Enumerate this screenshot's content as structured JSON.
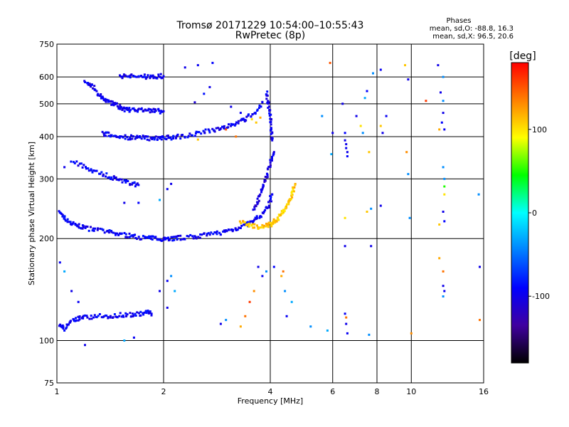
{
  "chart_data": {
    "type": "scatter",
    "title": "Tromsø 20171229 10:54:00–10:55:43",
    "subtitle": "RwPretec (8p)",
    "xlabel": "Frequency [MHz]",
    "ylabel": "Stationary phase Virtual Height [km]",
    "x_scale": "log",
    "y_scale": "log",
    "xlim": [
      1,
      16
    ],
    "ylim": [
      75,
      750
    ],
    "x_ticks": [
      1,
      2,
      4,
      6,
      8,
      10,
      16
    ],
    "x_tick_labels": [
      "1",
      "2",
      "4",
      "6",
      "8",
      "10",
      "16"
    ],
    "y_ticks": [
      75,
      100,
      200,
      300,
      400,
      500,
      600,
      750
    ],
    "y_tick_labels": [
      "75",
      "100",
      "200",
      "300",
      "400",
      "500",
      "600",
      "750"
    ],
    "grid": true,
    "phase_stats": {
      "heading": "Phases",
      "line_o": "mean, sd,O: -88.8, 16.3",
      "line_x": "mean, sd,X:  96.5, 20.6"
    },
    "colorbar": {
      "label": "[deg]",
      "range": [
        -180,
        180
      ],
      "ticks": [
        100,
        0,
        -100
      ],
      "tick_labels": [
        "100",
        "0",
        "-100"
      ],
      "colors": [
        "#ff0000",
        "#ff8000",
        "#ffff00",
        "#00ff00",
        "#00ffff",
        "#0080ff",
        "#0000ff",
        "#4000a0",
        "#000000"
      ]
    },
    "traces": [
      {
        "freq": [
          1.02,
          1.05,
          1.1,
          1.15,
          1.2,
          1.3,
          1.4,
          1.5,
          1.6,
          1.7,
          1.8,
          1.9,
          2.0,
          2.1,
          2.2,
          2.4,
          2.6,
          2.8,
          3.0,
          3.2,
          3.4,
          3.6,
          3.8,
          3.95,
          4.05
        ],
        "height": [
          238,
          230,
          222,
          218,
          215,
          212,
          209,
          206,
          204,
          202,
          201,
          200,
          200,
          200,
          201,
          202,
          204,
          207,
          210,
          214,
          219,
          226,
          236,
          250,
          270
        ],
        "phase": -95
      },
      {
        "freq": [
          3.3,
          3.5,
          3.7,
          3.9,
          4.0,
          4.1,
          4.2,
          4.3,
          4.4,
          4.5,
          4.6,
          4.7
        ],
        "height": [
          224,
          219,
          217,
          218,
          220,
          224,
          230,
          236,
          245,
          256,
          270,
          288
        ],
        "phase": 110
      },
      {
        "freq": [
          3.6,
          3.7,
          3.8,
          3.9,
          4.0,
          4.1
        ],
        "height": [
          245,
          262,
          282,
          305,
          330,
          360
        ],
        "phase": -105
      },
      {
        "freq": [
          1.35,
          1.4,
          1.5,
          1.6,
          1.7,
          1.8,
          1.9,
          2.0,
          2.1,
          2.2,
          2.4,
          2.6,
          2.8,
          3.0,
          3.2,
          3.4,
          3.6,
          3.8
        ],
        "height": [
          410,
          405,
          400,
          398,
          397,
          396,
          396,
          397,
          398,
          400,
          405,
          412,
          420,
          428,
          438,
          450,
          470,
          505
        ],
        "phase": -95
      },
      {
        "freq": [
          3.9,
          3.95,
          4.0,
          4.02,
          4.05
        ],
        "height": [
          540,
          500,
          460,
          420,
          390
        ],
        "phase": -100
      },
      {
        "freq": [
          1.1,
          1.2,
          1.3,
          1.4,
          1.5,
          1.6,
          1.7
        ],
        "height": [
          338,
          325,
          315,
          305,
          298,
          292,
          288
        ],
        "phase": -95
      },
      {
        "freq": [
          1.02,
          1.05,
          1.1,
          1.15,
          1.2,
          1.3,
          1.4,
          1.5,
          1.6,
          1.7,
          1.8,
          1.85
        ],
        "height": [
          112,
          108,
          114,
          116,
          117,
          118,
          118,
          119,
          119,
          120,
          121,
          120
        ],
        "phase": -95
      },
      {
        "freq": [
          1.2,
          1.25,
          1.3,
          1.35,
          1.4,
          1.45,
          1.5,
          1.55,
          1.6,
          1.7,
          1.8,
          1.9,
          2.0
        ],
        "height": [
          580,
          570,
          540,
          520,
          510,
          500,
          490,
          480,
          480,
          478,
          478,
          476,
          475
        ],
        "phase": -100
      },
      {
        "freq": [
          1.5,
          1.6,
          1.7,
          1.8,
          1.9,
          2.0
        ],
        "height": [
          605,
          603,
          602,
          601,
          602,
          603
        ],
        "phase": -95
      }
    ],
    "scatter": [
      {
        "freq": 2.3,
        "height": 640,
        "phase": -100
      },
      {
        "freq": 2.5,
        "height": 650,
        "phase": -95
      },
      {
        "freq": 2.75,
        "height": 660,
        "phase": -90
      },
      {
        "freq": 2.7,
        "height": 560,
        "phase": -100
      },
      {
        "freq": 2.6,
        "height": 535,
        "phase": -85
      },
      {
        "freq": 2.45,
        "height": 505,
        "phase": -110
      },
      {
        "freq": 3.1,
        "height": 490,
        "phase": -100
      },
      {
        "freq": 3.3,
        "height": 470,
        "phase": -95
      },
      {
        "freq": 3.55,
        "height": 450,
        "phase": 100
      },
      {
        "freq": 3.65,
        "height": 440,
        "phase": 110
      },
      {
        "freq": 3.75,
        "height": 455,
        "phase": 120
      },
      {
        "freq": 3.2,
        "height": 400,
        "phase": 140
      },
      {
        "freq": 3.0,
        "height": 420,
        "phase": 150
      },
      {
        "freq": 2.5,
        "height": 392,
        "phase": 110
      },
      {
        "freq": 2.1,
        "height": 290,
        "phase": -100
      },
      {
        "freq": 2.05,
        "height": 280,
        "phase": -95
      },
      {
        "freq": 1.7,
        "height": 255,
        "phase": -90
      },
      {
        "freq": 1.55,
        "height": 255,
        "phase": -100
      },
      {
        "freq": 1.95,
        "height": 260,
        "phase": -30
      },
      {
        "freq": 1.05,
        "height": 325,
        "phase": -100
      },
      {
        "freq": 1.02,
        "height": 170,
        "phase": -95
      },
      {
        "freq": 1.05,
        "height": 160,
        "phase": -30
      },
      {
        "freq": 1.1,
        "height": 140,
        "phase": -100
      },
      {
        "freq": 1.15,
        "height": 130,
        "phase": -95
      },
      {
        "freq": 1.2,
        "height": 97,
        "phase": -100
      },
      {
        "freq": 1.55,
        "height": 100,
        "phase": -30
      },
      {
        "freq": 1.65,
        "height": 102,
        "phase": -95
      },
      {
        "freq": 1.95,
        "height": 140,
        "phase": -100
      },
      {
        "freq": 2.05,
        "height": 150,
        "phase": -95
      },
      {
        "freq": 2.05,
        "height": 125,
        "phase": -100
      },
      {
        "freq": 2.1,
        "height": 155,
        "phase": -40
      },
      {
        "freq": 2.15,
        "height": 140,
        "phase": -30
      },
      {
        "freq": 2.9,
        "height": 112,
        "phase": -100
      },
      {
        "freq": 3.0,
        "height": 115,
        "phase": -40
      },
      {
        "freq": 3.4,
        "height": 118,
        "phase": 140
      },
      {
        "freq": 3.3,
        "height": 110,
        "phase": 120
      },
      {
        "freq": 3.5,
        "height": 130,
        "phase": 160
      },
      {
        "freq": 3.6,
        "height": 140,
        "phase": 130
      },
      {
        "freq": 3.7,
        "height": 165,
        "phase": -100
      },
      {
        "freq": 3.8,
        "height": 155,
        "phase": -95
      },
      {
        "freq": 3.9,
        "height": 160,
        "phase": -40
      },
      {
        "freq": 4.1,
        "height": 165,
        "phase": -90
      },
      {
        "freq": 4.3,
        "height": 155,
        "phase": 120
      },
      {
        "freq": 4.35,
        "height": 160,
        "phase": 140
      },
      {
        "freq": 4.4,
        "height": 140,
        "phase": -40
      },
      {
        "freq": 4.45,
        "height": 118,
        "phase": -95
      },
      {
        "freq": 4.6,
        "height": 130,
        "phase": -30
      },
      {
        "freq": 5.2,
        "height": 110,
        "phase": -40
      },
      {
        "freq": 5.8,
        "height": 107,
        "phase": -30
      },
      {
        "freq": 5.6,
        "height": 460,
        "phase": -40
      },
      {
        "freq": 5.9,
        "height": 660,
        "phase": 150
      },
      {
        "freq": 6.0,
        "height": 410,
        "phase": -100
      },
      {
        "freq": 5.95,
        "height": 355,
        "phase": -30
      },
      {
        "freq": 6.4,
        "height": 500,
        "phase": -100
      },
      {
        "freq": 6.5,
        "height": 410,
        "phase": -90
      },
      {
        "freq": 6.5,
        "height": 390,
        "phase": -100
      },
      {
        "freq": 6.55,
        "height": 380,
        "phase": -100
      },
      {
        "freq": 6.55,
        "height": 370,
        "phase": -95
      },
      {
        "freq": 6.6,
        "height": 360,
        "phase": -100
      },
      {
        "freq": 6.6,
        "height": 350,
        "phase": -90
      },
      {
        "freq": 6.5,
        "height": 230,
        "phase": 100
      },
      {
        "freq": 6.5,
        "height": 190,
        "phase": -100
      },
      {
        "freq": 6.5,
        "height": 120,
        "phase": -95
      },
      {
        "freq": 6.55,
        "height": 117,
        "phase": 140
      },
      {
        "freq": 6.55,
        "height": 112,
        "phase": -100
      },
      {
        "freq": 6.6,
        "height": 105,
        "phase": -95
      },
      {
        "freq": 7.0,
        "height": 460,
        "phase": -100
      },
      {
        "freq": 7.2,
        "height": 430,
        "phase": 100
      },
      {
        "freq": 7.3,
        "height": 410,
        "phase": -40
      },
      {
        "freq": 7.4,
        "height": 520,
        "phase": -30
      },
      {
        "freq": 7.5,
        "height": 545,
        "phase": -90
      },
      {
        "freq": 7.6,
        "height": 360,
        "phase": 110
      },
      {
        "freq": 7.5,
        "height": 240,
        "phase": 110
      },
      {
        "freq": 7.7,
        "height": 245,
        "phase": -40
      },
      {
        "freq": 7.7,
        "height": 190,
        "phase": -100
      },
      {
        "freq": 7.6,
        "height": 104,
        "phase": -40
      },
      {
        "freq": 7.8,
        "height": 615,
        "phase": -40
      },
      {
        "freq": 8.2,
        "height": 630,
        "phase": -95
      },
      {
        "freq": 8.2,
        "height": 430,
        "phase": 110
      },
      {
        "freq": 8.3,
        "height": 410,
        "phase": -100
      },
      {
        "freq": 8.5,
        "height": 460,
        "phase": -95
      },
      {
        "freq": 8.2,
        "height": 250,
        "phase": -100
      },
      {
        "freq": 9.6,
        "height": 650,
        "phase": 110
      },
      {
        "freq": 9.8,
        "height": 590,
        "phase": -100
      },
      {
        "freq": 9.7,
        "height": 360,
        "phase": 130
      },
      {
        "freq": 9.8,
        "height": 310,
        "phase": -40
      },
      {
        "freq": 9.9,
        "height": 230,
        "phase": -40
      },
      {
        "freq": 10.0,
        "height": 105,
        "phase": 130
      },
      {
        "freq": 11.0,
        "height": 510,
        "phase": 160
      },
      {
        "freq": 11.9,
        "height": 650,
        "phase": -100
      },
      {
        "freq": 12.3,
        "height": 600,
        "phase": -40
      },
      {
        "freq": 12.1,
        "height": 540,
        "phase": -100
      },
      {
        "freq": 12.3,
        "height": 510,
        "phase": -40
      },
      {
        "freq": 12.3,
        "height": 470,
        "phase": -100
      },
      {
        "freq": 12.2,
        "height": 440,
        "phase": -90
      },
      {
        "freq": 12.0,
        "height": 420,
        "phase": 120
      },
      {
        "freq": 12.4,
        "height": 420,
        "phase": -95
      },
      {
        "freq": 12.3,
        "height": 325,
        "phase": -40
      },
      {
        "freq": 12.4,
        "height": 300,
        "phase": -40
      },
      {
        "freq": 12.4,
        "height": 285,
        "phase": 50
      },
      {
        "freq": 12.4,
        "height": 270,
        "phase": 100
      },
      {
        "freq": 12.3,
        "height": 240,
        "phase": -100
      },
      {
        "freq": 12.4,
        "height": 225,
        "phase": -90
      },
      {
        "freq": 12.0,
        "height": 220,
        "phase": 110
      },
      {
        "freq": 12.0,
        "height": 175,
        "phase": 120
      },
      {
        "freq": 12.3,
        "height": 160,
        "phase": 140
      },
      {
        "freq": 12.3,
        "height": 145,
        "phase": -100
      },
      {
        "freq": 12.4,
        "height": 140,
        "phase": -95
      },
      {
        "freq": 12.3,
        "height": 135,
        "phase": -40
      },
      {
        "freq": 15.5,
        "height": 270,
        "phase": -40
      },
      {
        "freq": 15.6,
        "height": 165,
        "phase": -100
      },
      {
        "freq": 15.6,
        "height": 115,
        "phase": 140
      }
    ]
  }
}
